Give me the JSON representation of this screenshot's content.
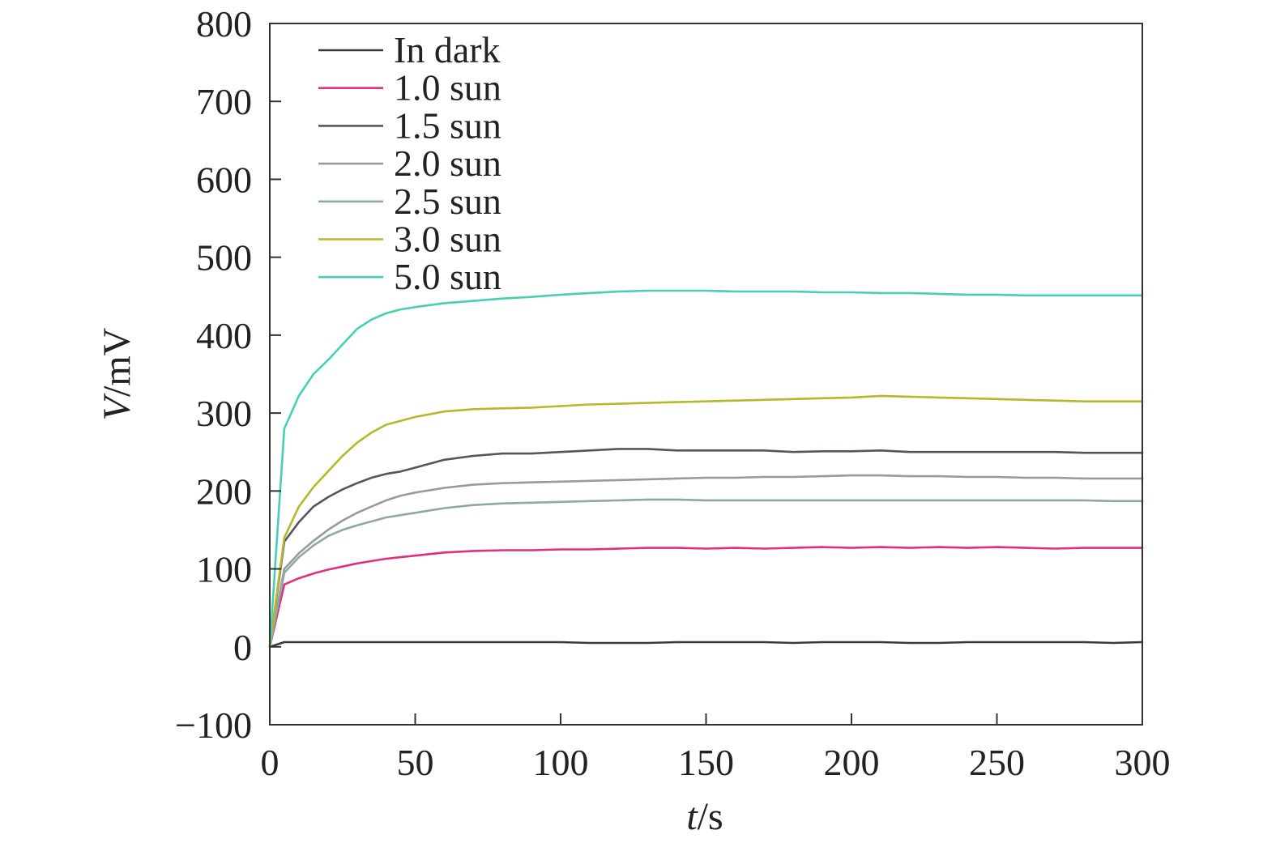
{
  "chart_data": {
    "type": "line",
    "xlabel": {
      "var": "t",
      "unit": "/s"
    },
    "ylabel": {
      "var": "V",
      "unit": "/mV"
    },
    "xlim": [
      0,
      300
    ],
    "ylim": [
      -100,
      800
    ],
    "xticks": [
      0,
      50,
      100,
      150,
      200,
      250,
      300
    ],
    "xtick_labels": [
      "0",
      "50",
      "100",
      "150",
      "200",
      "250",
      "300"
    ],
    "yticks": [
      -100,
      0,
      100,
      200,
      300,
      400,
      500,
      600,
      700,
      800
    ],
    "ytick_labels": [
      "−100",
      "0",
      "100",
      "200",
      "300",
      "400",
      "500",
      "600",
      "700",
      "800"
    ],
    "grid": false,
    "legend_position": "top-left",
    "x": [
      0,
      5,
      10,
      15,
      20,
      25,
      30,
      35,
      40,
      45,
      50,
      60,
      70,
      80,
      90,
      100,
      110,
      120,
      130,
      140,
      150,
      160,
      170,
      180,
      190,
      200,
      210,
      220,
      230,
      240,
      250,
      260,
      270,
      280,
      290,
      300
    ],
    "series": [
      {
        "name": "In dark",
        "color": "#3a3a3a",
        "values": [
          0,
          6,
          6,
          6,
          6,
          6,
          6,
          6,
          6,
          6,
          6,
          6,
          6,
          6,
          6,
          6,
          5,
          5,
          5,
          6,
          6,
          6,
          6,
          5,
          6,
          6,
          6,
          5,
          5,
          6,
          6,
          6,
          6,
          6,
          5,
          6
        ]
      },
      {
        "name": "1.0 sun",
        "color": "#e0307a",
        "values": [
          0,
          80,
          88,
          94,
          99,
          103,
          107,
          110,
          113,
          115,
          117,
          121,
          123,
          124,
          124,
          125,
          125,
          126,
          127,
          127,
          126,
          127,
          126,
          127,
          128,
          127,
          128,
          127,
          128,
          127,
          128,
          127,
          126,
          127,
          127,
          127
        ]
      },
      {
        "name": "1.5 sun",
        "color": "#55555f",
        "values": [
          0,
          135,
          160,
          180,
          192,
          202,
          210,
          217,
          222,
          225,
          230,
          240,
          245,
          248,
          248,
          250,
          252,
          254,
          254,
          252,
          252,
          252,
          252,
          250,
          251,
          251,
          252,
          250,
          250,
          250,
          250,
          250,
          250,
          249,
          249,
          249
        ]
      },
      {
        "name": "2.0 sun",
        "color": "#9a9a9a",
        "values": [
          0,
          100,
          120,
          136,
          150,
          162,
          172,
          180,
          188,
          194,
          198,
          204,
          208,
          210,
          211,
          212,
          213,
          214,
          215,
          216,
          217,
          217,
          218,
          218,
          219,
          220,
          220,
          219,
          219,
          218,
          218,
          217,
          217,
          216,
          216,
          216
        ]
      },
      {
        "name": "2.5 sun",
        "color": "#8fa8a6",
        "values": [
          0,
          95,
          115,
          130,
          142,
          150,
          156,
          161,
          166,
          169,
          172,
          178,
          182,
          184,
          185,
          186,
          187,
          188,
          189,
          189,
          188,
          188,
          188,
          188,
          188,
          188,
          188,
          188,
          188,
          188,
          188,
          188,
          188,
          188,
          187,
          187
        ]
      },
      {
        "name": "3.0 sun",
        "color": "#b5b82a",
        "values": [
          0,
          140,
          180,
          205,
          225,
          245,
          262,
          275,
          285,
          290,
          295,
          302,
          305,
          306,
          307,
          309,
          311,
          312,
          313,
          314,
          315,
          316,
          317,
          318,
          319,
          320,
          322,
          321,
          320,
          319,
          318,
          317,
          316,
          315,
          315,
          315
        ]
      },
      {
        "name": "5.0 sun",
        "color": "#48cfb1",
        "values": [
          0,
          280,
          322,
          350,
          368,
          388,
          408,
          420,
          428,
          433,
          436,
          441,
          444,
          447,
          449,
          452,
          454,
          456,
          457,
          457,
          457,
          456,
          456,
          456,
          455,
          455,
          454,
          454,
          453,
          452,
          452,
          451,
          451,
          451,
          451,
          451
        ]
      }
    ]
  }
}
